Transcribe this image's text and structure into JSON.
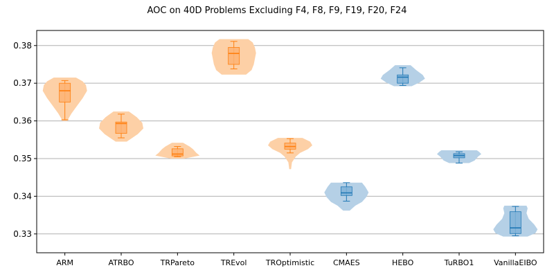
{
  "chart_data": {
    "type": "violin",
    "title": "AOC on 40D Problems Excluding F4, F8, F9, F19, F20, F24",
    "xlabel": "",
    "ylabel": "",
    "ylim": [
      0.325,
      0.384
    ],
    "yticks": [
      0.33,
      0.34,
      0.35,
      0.36,
      0.37,
      0.38
    ],
    "ytick_labels": [
      "0.33",
      "0.34",
      "0.35",
      "0.36",
      "0.37",
      "0.38"
    ],
    "grid": "horizontal",
    "colors": {
      "orange_fill": "#fdd0a6",
      "orange_box": "#fdb373",
      "orange_line": "#ff7f0e",
      "blue_fill": "#b5d0e6",
      "blue_box": "#7fb2d7",
      "blue_line": "#1f77b4",
      "grid": "#b0b0b0"
    },
    "categories": [
      "ARM",
      "ATRBO",
      "TRPareto",
      "TREvol",
      "TROptimistic",
      "CMAES",
      "HEBO",
      "TuRBO1",
      "VanillaEIBO"
    ],
    "series": [
      {
        "group": "orange",
        "min": 0.3603,
        "q1": 0.365,
        "median": 0.368,
        "q3": 0.37,
        "max": 0.3707,
        "violin_range": [
          0.36,
          0.3715
        ],
        "profile": [
          [
            0.36,
            0.1
          ],
          [
            0.362,
            0.3
          ],
          [
            0.364,
            0.55
          ],
          [
            0.366,
            0.8
          ],
          [
            0.368,
            1.0
          ],
          [
            0.3695,
            0.95
          ],
          [
            0.3705,
            0.8
          ],
          [
            0.3715,
            0.5
          ]
        ]
      },
      {
        "group": "orange",
        "min": 0.3555,
        "q1": 0.3567,
        "median": 0.3593,
        "q3": 0.3597,
        "max": 0.3618,
        "violin_range": [
          0.3545,
          0.3625
        ],
        "profile": [
          [
            0.3545,
            0.25
          ],
          [
            0.3555,
            0.5
          ],
          [
            0.3565,
            0.75
          ],
          [
            0.358,
            1.0
          ],
          [
            0.3595,
            0.95
          ],
          [
            0.361,
            0.7
          ],
          [
            0.3625,
            0.35
          ]
        ]
      },
      {
        "group": "orange",
        "min": 0.3505,
        "q1": 0.3507,
        "median": 0.3512,
        "q3": 0.3526,
        "max": 0.3532,
        "violin_range": [
          0.35,
          0.3542
        ],
        "profile": [
          [
            0.35,
            0.3
          ],
          [
            0.3508,
            1.0
          ],
          [
            0.3515,
            0.85
          ],
          [
            0.3525,
            0.7
          ],
          [
            0.3532,
            0.55
          ],
          [
            0.3542,
            0.25
          ]
        ]
      },
      {
        "group": "orange",
        "min": 0.3738,
        "q1": 0.375,
        "median": 0.3779,
        "q3": 0.3795,
        "max": 0.3811,
        "violin_range": [
          0.3723,
          0.3817
        ],
        "profile": [
          [
            0.3723,
            0.55
          ],
          [
            0.3735,
            0.8
          ],
          [
            0.375,
            0.9
          ],
          [
            0.3765,
            0.95
          ],
          [
            0.378,
            1.0
          ],
          [
            0.3795,
            0.95
          ],
          [
            0.3808,
            0.85
          ],
          [
            0.3817,
            0.65
          ]
        ]
      },
      {
        "group": "orange",
        "min": 0.3515,
        "q1": 0.3525,
        "median": 0.3532,
        "q3": 0.3541,
        "max": 0.3553,
        "violin_range": [
          0.3472,
          0.3555
        ],
        "profile": [
          [
            0.3472,
            0.04
          ],
          [
            0.349,
            0.08
          ],
          [
            0.3505,
            0.25
          ],
          [
            0.3515,
            0.45
          ],
          [
            0.3525,
            0.8
          ],
          [
            0.3535,
            1.0
          ],
          [
            0.3545,
            0.9
          ],
          [
            0.3555,
            0.55
          ]
        ]
      },
      {
        "group": "blue",
        "min": 0.3387,
        "q1": 0.3402,
        "median": 0.3409,
        "q3": 0.3425,
        "max": 0.3436,
        "violin_range": [
          0.3362,
          0.3436
        ],
        "profile": [
          [
            0.3362,
            0.15
          ],
          [
            0.3375,
            0.4
          ],
          [
            0.3385,
            0.7
          ],
          [
            0.3398,
            0.9
          ],
          [
            0.341,
            1.0
          ],
          [
            0.3425,
            0.85
          ],
          [
            0.3436,
            0.7
          ]
        ]
      },
      {
        "group": "blue",
        "min": 0.3694,
        "q1": 0.37,
        "median": 0.3716,
        "q3": 0.3722,
        "max": 0.3741,
        "violin_range": [
          0.3692,
          0.3748
        ],
        "profile": [
          [
            0.3692,
            0.4
          ],
          [
            0.3702,
            0.75
          ],
          [
            0.3712,
            1.0
          ],
          [
            0.3722,
            0.9
          ],
          [
            0.3735,
            0.6
          ],
          [
            0.3748,
            0.35
          ]
        ]
      },
      {
        "group": "blue",
        "min": 0.3488,
        "q1": 0.3502,
        "median": 0.3508,
        "q3": 0.3513,
        "max": 0.3518,
        "violin_range": [
          0.3488,
          0.3522
        ],
        "profile": [
          [
            0.3488,
            0.45
          ],
          [
            0.3495,
            0.7
          ],
          [
            0.3505,
            0.85
          ],
          [
            0.3512,
            1.0
          ],
          [
            0.3518,
            0.9
          ],
          [
            0.3522,
            0.8
          ]
        ]
      },
      {
        "group": "blue",
        "min": 0.3295,
        "q1": 0.3301,
        "median": 0.3316,
        "q3": 0.3359,
        "max": 0.3373,
        "violin_range": [
          0.3293,
          0.3375
        ],
        "profile": [
          [
            0.3293,
            0.55
          ],
          [
            0.3302,
            0.9
          ],
          [
            0.3312,
            1.0
          ],
          [
            0.3325,
            0.85
          ],
          [
            0.334,
            0.6
          ],
          [
            0.3355,
            0.5
          ],
          [
            0.3368,
            0.55
          ],
          [
            0.3375,
            0.5
          ]
        ]
      }
    ]
  }
}
